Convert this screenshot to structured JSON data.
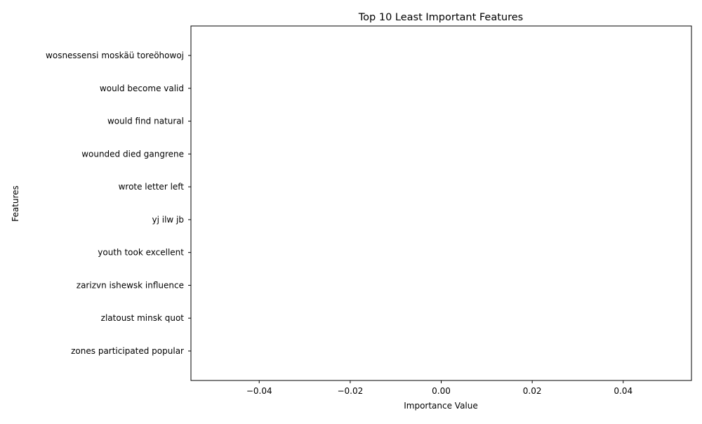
{
  "chart_data": {
    "type": "bar",
    "orientation": "horizontal",
    "title": "Top 10 Least Important Features",
    "xlabel": "Importance Value",
    "ylabel": "Features",
    "categories": [
      "wosnessensi moskäü toreöhowoj",
      "would become valid",
      "would find natural",
      "wounded died gangrene",
      "wrote letter left",
      "yj ilw jb",
      "youth took excellent",
      "zarizvn ishewsk influence",
      "zlatoust minsk quot",
      "zones participated popular"
    ],
    "values": [
      0,
      0,
      0,
      0,
      0,
      0,
      0,
      0,
      0,
      0
    ],
    "xlim": [
      -0.055,
      0.055
    ],
    "xticks": [
      -0.04,
      -0.02,
      0.0,
      0.02,
      0.04
    ],
    "xtick_labels": [
      "−0.04",
      "−0.02",
      "0.00",
      "0.02",
      "0.04"
    ],
    "grid": false,
    "bar_color": "#1f77b4"
  }
}
